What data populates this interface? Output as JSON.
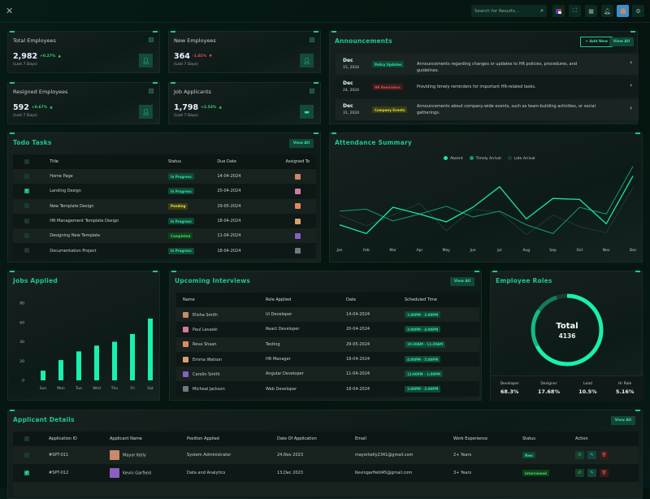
{
  "topbar": {
    "search_placeholder": "Search for Results...",
    "icons": [
      "close-icon",
      "search-icon",
      "us-flag-icon",
      "fullscreen-icon",
      "apps-grid-icon",
      "bell-icon",
      "avatar",
      "settings-icon"
    ]
  },
  "colors": {
    "accent": "#1fc690",
    "bright": "#19f0b0",
    "bg": "#07180f",
    "up": "#33d17a",
    "down": "#e0504d"
  },
  "stats": [
    {
      "title": "Total Employees",
      "value": "2,982",
      "change": "+0.27%",
      "dir": "up",
      "sub": "(Last 7 Days)",
      "icon": "user-icon"
    },
    {
      "title": "New Employees",
      "value": "364",
      "change": "-1.02%",
      "dir": "down",
      "sub": "(Last 7 Days)",
      "icon": "user-plus-icon"
    },
    {
      "title": "Resigned Employees",
      "value": "592",
      "change": "+0.67%",
      "dir": "up",
      "sub": "(Last 7 Days)",
      "icon": "user-minus-icon"
    },
    {
      "title": "Job Applicants",
      "value": "1,798",
      "change": "+2.53%",
      "dir": "up",
      "sub": "(Last 7 Days)",
      "icon": "id-card-icon"
    }
  ],
  "announcements": {
    "title": "Announcements",
    "add_label": "+ Add New",
    "view_all": "View All",
    "items": [
      {
        "month": "Dec",
        "date": "15, 2024",
        "tag": "Policy Updates",
        "tag_color": "green",
        "text": "Announcements regarding changes or updates to HR policies, procedures, and guidelines."
      },
      {
        "month": "Dec",
        "date": "24, 2024",
        "tag": "HR Reminders",
        "tag_color": "red",
        "text": "Providing timely reminders for important HR-related tasks."
      },
      {
        "month": "Dec",
        "date": "31, 2024",
        "tag": "Company Events",
        "tag_color": "yellow",
        "text": "Announcements about company-wide events, such as team-building activities, or social gatherings."
      }
    ]
  },
  "todo": {
    "title": "Todo Tasks",
    "view_all": "View All",
    "columns": [
      "Title",
      "Status",
      "Due Date",
      "Assigned To"
    ],
    "rows": [
      {
        "checked": false,
        "title": "Home Page",
        "status": "In Progress",
        "status_color": "green",
        "due": "14-04-2024"
      },
      {
        "checked": true,
        "title": "Landing Design",
        "status": "In Progress",
        "status_color": "green",
        "due": "20-04-2024"
      },
      {
        "checked": false,
        "title": "New Template Design",
        "status": "Pending",
        "status_color": "yellow",
        "due": "29-05-2024"
      },
      {
        "checked": false,
        "title": "HR Management Template Design",
        "status": "In Progress",
        "status_color": "green",
        "due": "18-04-2024"
      },
      {
        "checked": false,
        "title": "Designing New Template",
        "status": "Completed",
        "status_color": "lime",
        "due": "11-04-2024"
      },
      {
        "checked": false,
        "title": "Documentation Project",
        "status": "In Progress",
        "status_color": "green",
        "due": "18-04-2024"
      }
    ]
  },
  "attendance": {
    "title": "Attendance Summary",
    "chart_data": {
      "type": "line",
      "categories": [
        "Jan",
        "Feb",
        "Mar",
        "Apr",
        "May",
        "Jun",
        "Jul",
        "Aug",
        "Sep",
        "Oct",
        "Nov",
        "Dec"
      ],
      "grid": false,
      "legend": "top-center",
      "series": [
        {
          "name": "Absent",
          "color": "#19e6a7",
          "values": [
            17,
            8,
            35,
            28,
            20,
            35,
            56,
            23,
            44,
            43,
            18,
            67
          ]
        },
        {
          "name": "Timely Arrival",
          "color": "#139a72",
          "values": [
            31,
            33,
            21,
            28,
            36,
            25,
            31,
            17,
            8,
            35,
            28,
            77
          ]
        },
        {
          "name": "Late Arrival",
          "color": "#1a3d33",
          "values": [
            27,
            16,
            27,
            39,
            11,
            33,
            30,
            7,
            27,
            15,
            9,
            55
          ]
        }
      ]
    }
  },
  "jobs": {
    "title": "Jobs Applied",
    "chart_data": {
      "type": "bar",
      "categories": [
        "Sun",
        "Mon",
        "Tue",
        "Wed",
        "Thu",
        "Fri",
        "Sat"
      ],
      "values": [
        10,
        21,
        30,
        36,
        40,
        48,
        64
      ],
      "ylim": [
        0,
        80
      ],
      "yticks": [
        "0",
        "20",
        "40",
        "60",
        "80"
      ],
      "color": "#19f0b0"
    }
  },
  "interviews": {
    "title": "Upcoming Interviews",
    "view_all": "View All",
    "columns": [
      "Name",
      "Role Applied",
      "Date",
      "Scheduled Time"
    ],
    "rows": [
      {
        "name": "Elisha Smith",
        "role": "Ui Developer",
        "date": "14-04-2024",
        "time": "1:00PM - 2:00PM"
      },
      {
        "name": "Paul Levaski",
        "role": "React Developer",
        "date": "20-04-2024",
        "time": "3:00PM - 4:00PM"
      },
      {
        "name": "Reva Shaan",
        "role": "Testing",
        "date": "29-05-2024",
        "time": "10:30AM - 11:30AM"
      },
      {
        "name": "Emma Watson",
        "role": "HR Manager",
        "date": "18-04-2024",
        "time": "4:00PM - 5:00PM"
      },
      {
        "name": "Carolin Smith",
        "role": "Angular Developer",
        "date": "11-04-2024",
        "time": "12:00PM - 1:00PM"
      },
      {
        "name": "Micheal Jackson",
        "role": "Web Developer",
        "date": "18-04-2024",
        "time": "1:00PM - 2:00PM"
      }
    ]
  },
  "roles": {
    "title": "Employee Roles",
    "total_label": "Total",
    "total": "4136",
    "chart_data": {
      "type": "pie",
      "labels": [
        "Developer",
        "Designer",
        "Lead",
        "Hr Role"
      ],
      "values": [
        "68.3%",
        "17.68%",
        "10.5%",
        "5.16%"
      ],
      "numeric": [
        68.3,
        17.68,
        10.5,
        5.16
      ],
      "colors": [
        "#19f0b0",
        "#14b889",
        "#137a5e",
        "#173d33"
      ]
    }
  },
  "applicants": {
    "title": "Applicant Details",
    "view_all": "View All",
    "columns": [
      "Application ID",
      "Applicant Name",
      "Position Applied",
      "Date Of Application",
      "Email",
      "Work Experience",
      "Status",
      "Action"
    ],
    "rows": [
      {
        "checked": false,
        "id": "#SPT-011",
        "name": "Mayor Kelly",
        "position": "System Administrator",
        "date": "24,Nov 2023",
        "email": "mayorkelly2341@gmail.com",
        "exp": "2+ Years",
        "status": "New",
        "status_color": "green"
      },
      {
        "checked": true,
        "id": "#SPT-012",
        "name": "Kevin Garfield",
        "position": "Data and Analytics",
        "date": "13,Dec 2023",
        "email": "Kevingarfield45@gmail.com",
        "exp": "3+ Years",
        "status": "Interviewed",
        "status_color": "lime"
      }
    ]
  }
}
